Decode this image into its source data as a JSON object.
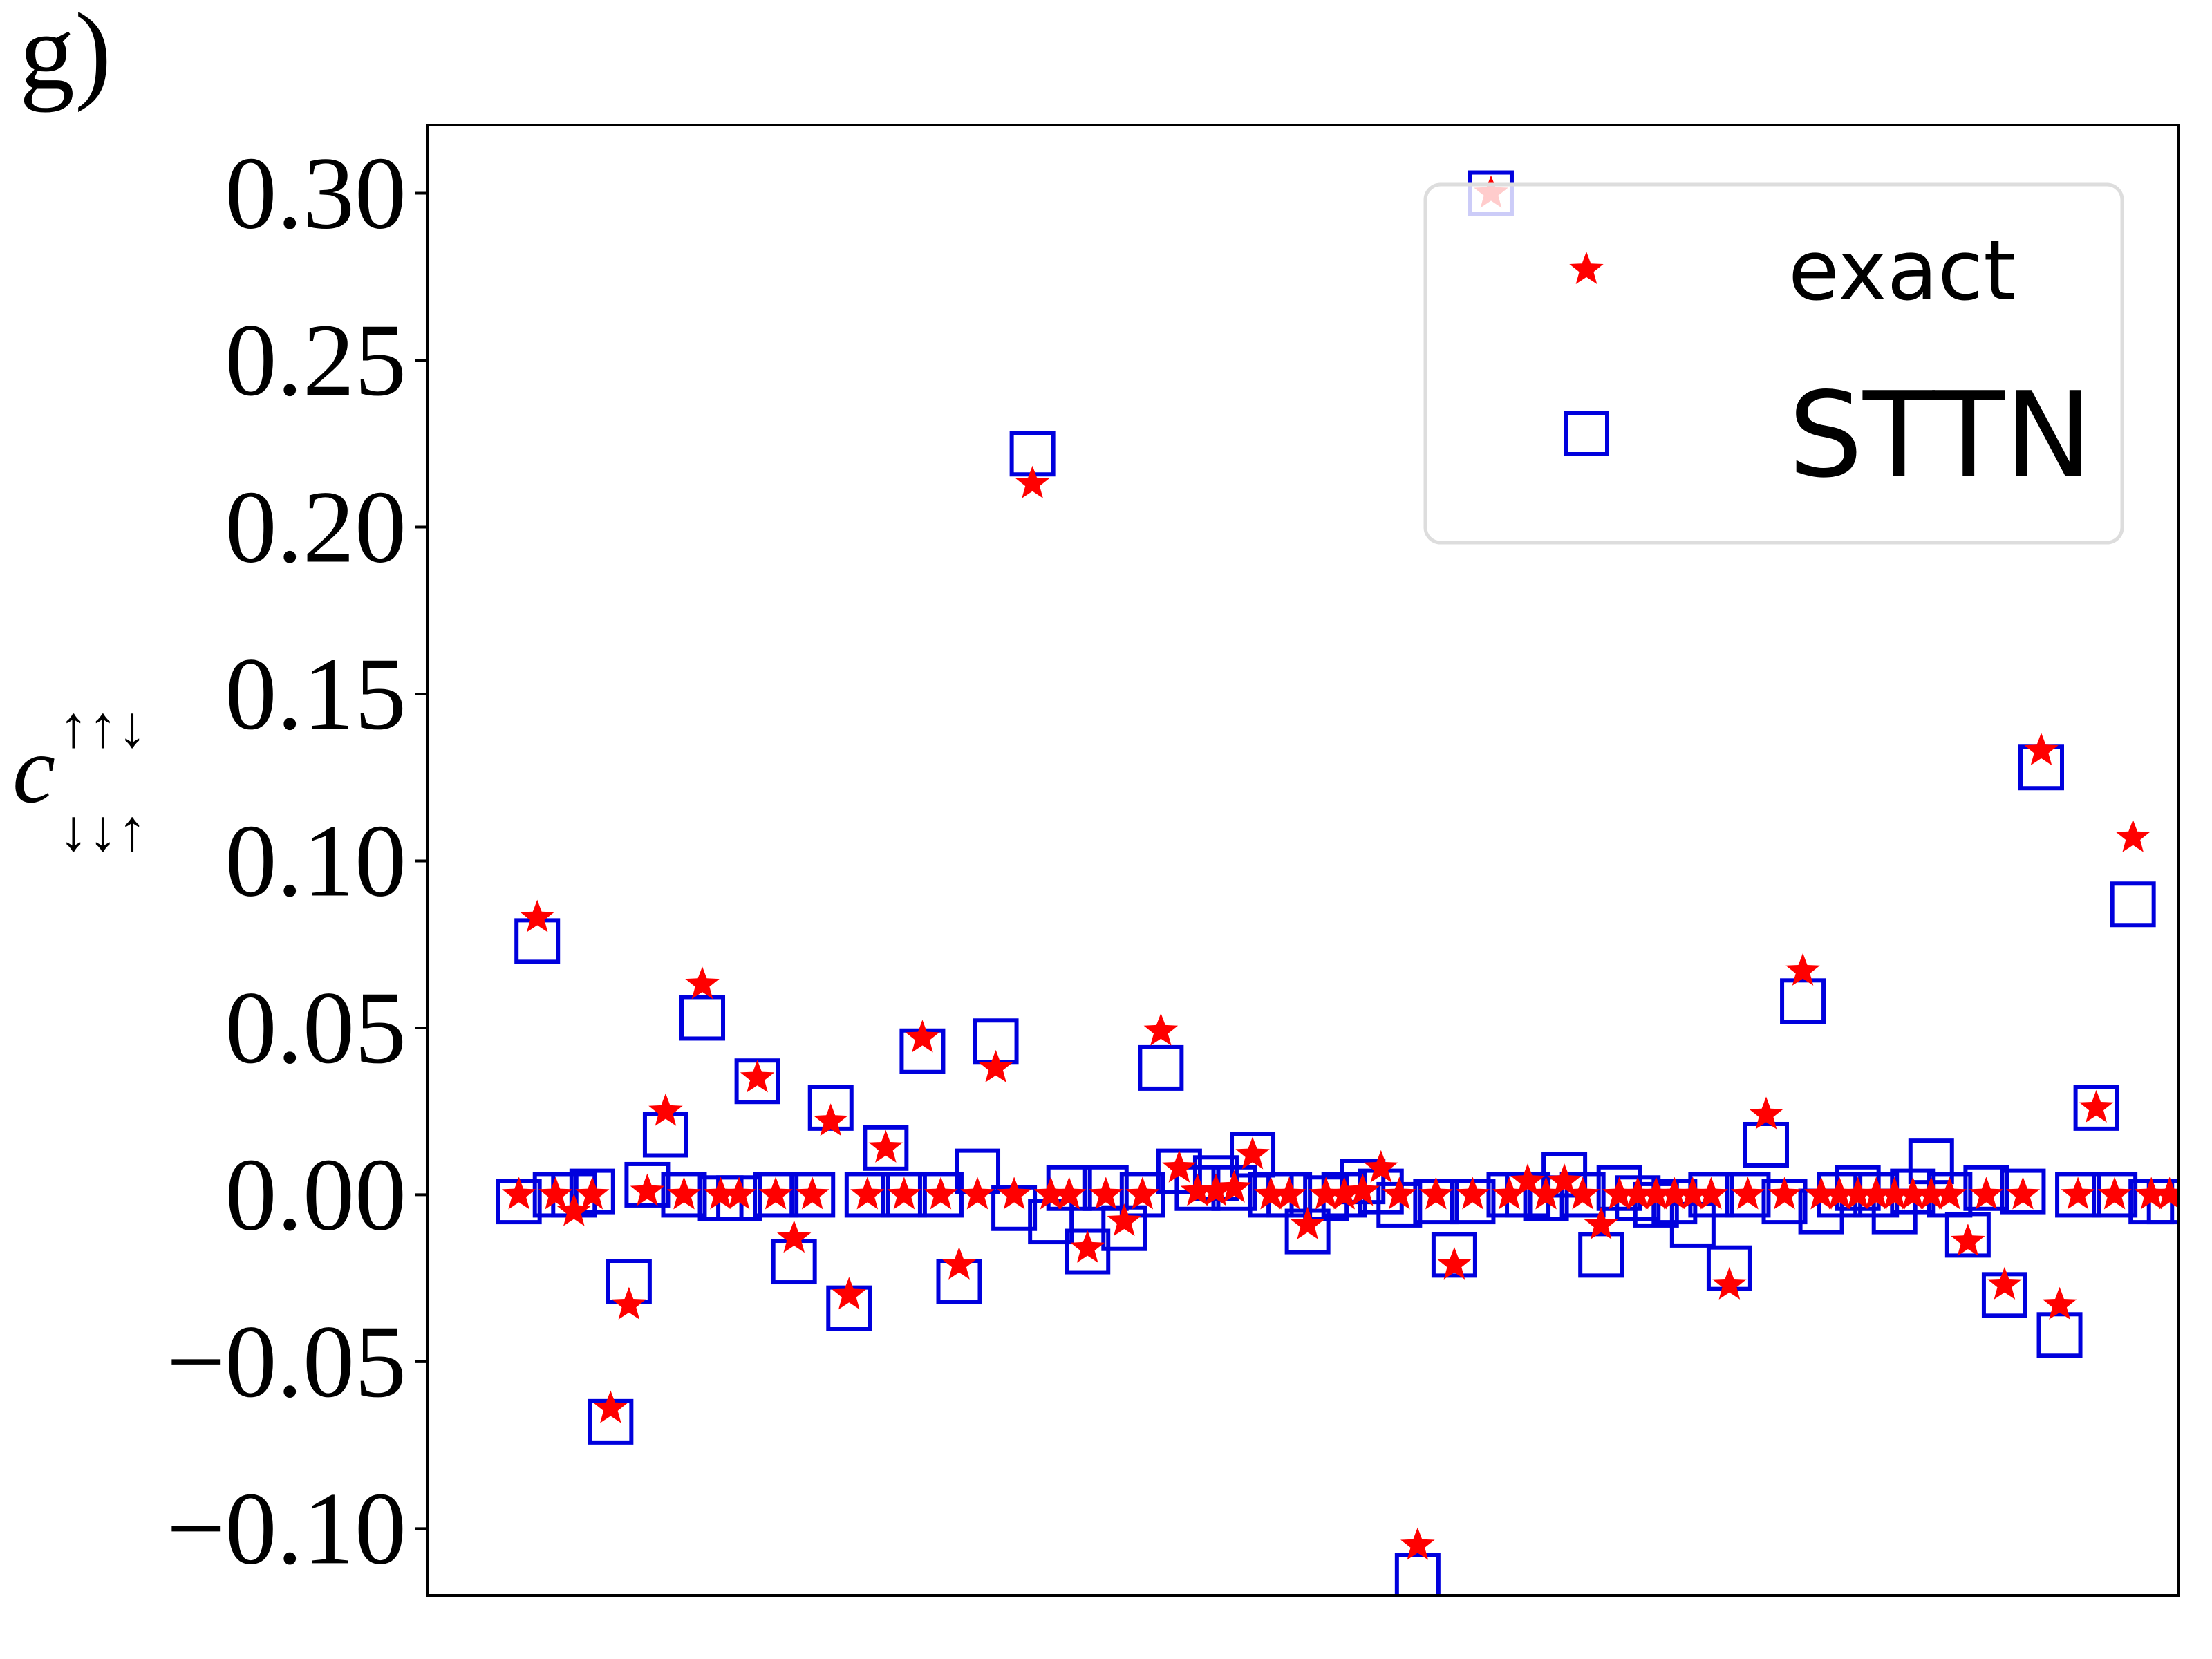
{
  "chart_data": {
    "type": "scatter",
    "title": "g)",
    "ylabel": {
      "base": "c",
      "sup": "↑↑↓",
      "sub": "↓↓↑"
    },
    "x": [
      0,
      1,
      2,
      3,
      4,
      5,
      6,
      7,
      8,
      9,
      10,
      11,
      12,
      13,
      14,
      15,
      16,
      17,
      18,
      19,
      20,
      21,
      22,
      23,
      24,
      25,
      26,
      27,
      28,
      29,
      30,
      31,
      32,
      33,
      34,
      35,
      36,
      37,
      38,
      39,
      40,
      41,
      42,
      43,
      44,
      45,
      46,
      47,
      48,
      49,
      50,
      51,
      52,
      53,
      54,
      55,
      56,
      57,
      58,
      59,
      60,
      61,
      62,
      63,
      64,
      65,
      66,
      67,
      68,
      69,
      70,
      71,
      72,
      73,
      74,
      75,
      76,
      77,
      78,
      79,
      80,
      81,
      82,
      83,
      84,
      85,
      86,
      87,
      88,
      89,
      90
    ],
    "series": [
      {
        "name": "exact",
        "color": "#ff0000",
        "marker": "star",
        "values": [
          0,
          0.083,
          0,
          -0.005,
          0,
          -0.064,
          -0.033,
          0.001,
          0.025,
          0,
          0.063,
          0,
          0,
          0.035,
          0,
          -0.013,
          0,
          0.022,
          -0.03,
          0,
          0.014,
          0,
          0.047,
          0,
          -0.021,
          0,
          0.038,
          0,
          0.213,
          0,
          0,
          -0.016,
          0,
          -0.008,
          0,
          0.049,
          0.008,
          0.001,
          0.001,
          0.002,
          0.012,
          0,
          0,
          -0.009,
          0,
          0,
          0.001,
          0.008,
          0,
          -0.105,
          0,
          -0.021,
          0,
          0.3,
          0,
          0.004,
          0,
          0.004,
          0,
          -0.009,
          0,
          0,
          0,
          0,
          0,
          0,
          -0.027,
          0,
          0.024,
          0,
          0.067,
          0,
          0,
          0,
          0,
          0,
          0,
          0,
          0,
          -0.014,
          0,
          -0.027,
          0,
          0.133,
          -0.033,
          0,
          0.026,
          0,
          0.107,
          0,
          0
        ]
      },
      {
        "name": "STTN",
        "color": "#0000dd",
        "marker": "square",
        "values": [
          -0.002,
          0.076,
          0,
          0,
          0.001,
          -0.068,
          -0.026,
          0.003,
          0.018,
          0,
          0.053,
          -0.001,
          -0.001,
          0.034,
          0,
          -0.02,
          0,
          0.026,
          -0.034,
          0,
          0.014,
          0,
          0.043,
          0,
          -0.026,
          0.007,
          0.046,
          -0.004,
          0.222,
          -0.008,
          0.002,
          -0.017,
          0.002,
          -0.01,
          0,
          0.038,
          0.007,
          0.002,
          0.005,
          0.002,
          0.012,
          0,
          0,
          -0.011,
          -0.001,
          0,
          0.004,
          0.001,
          -0.003,
          -0.114,
          -0.002,
          -0.018,
          -0.002,
          0.3,
          0,
          0,
          -0.001,
          0.006,
          0,
          -0.018,
          0.002,
          -0.001,
          -0.003,
          -0.002,
          -0.009,
          0,
          -0.022,
          0,
          0.015,
          -0.002,
          0.058,
          -0.005,
          0,
          0.002,
          0,
          -0.005,
          0.001,
          0.01,
          0,
          -0.012,
          0.002,
          -0.03,
          0.001,
          0.128,
          -0.042,
          0,
          0.026,
          0,
          0.087,
          -0.002,
          -0.002
        ]
      }
    ],
    "xlim": [
      -5,
      90.5
    ],
    "ylim": [
      -0.12,
      0.3204
    ],
    "yticks": [
      {
        "value": -0.1,
        "label": "−0.10"
      },
      {
        "value": -0.05,
        "label": "−0.05"
      },
      {
        "value": 0,
        "label": "0.00"
      },
      {
        "value": 0.05,
        "label": "0.05"
      },
      {
        "value": 0.1,
        "label": "0.10"
      },
      {
        "value": 0.15,
        "label": "0.15"
      },
      {
        "value": 0.2,
        "label": "0.20"
      },
      {
        "value": 0.25,
        "label": "0.25"
      },
      {
        "value": 0.3,
        "label": "0.30"
      }
    ],
    "grid": false,
    "legend": "upper right"
  }
}
